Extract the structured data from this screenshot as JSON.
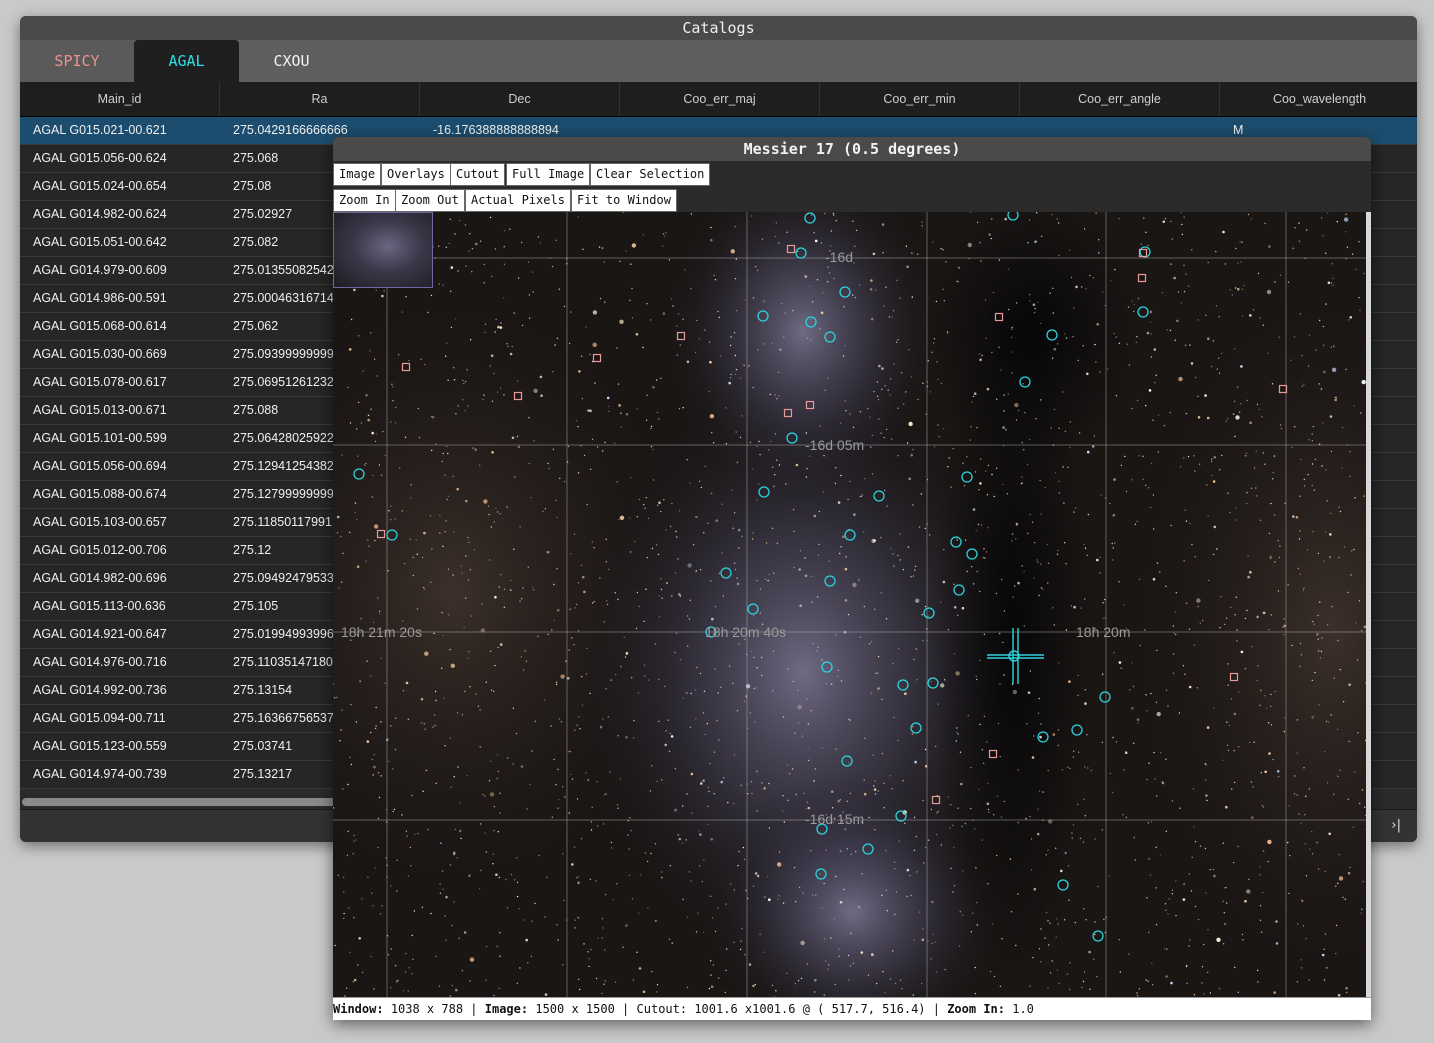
{
  "catalogs_window": {
    "title": "Catalogs",
    "tabs": [
      {
        "label": "SPICY",
        "color": "#f0908a"
      },
      {
        "label": "AGAL",
        "color": "#29e0e8",
        "active": true
      },
      {
        "label": "CXOU",
        "color": "#f4f4f4"
      }
    ],
    "columns": [
      "Main_id",
      "Ra",
      "Dec",
      "Coo_err_maj",
      "Coo_err_min",
      "Coo_err_angle",
      "Coo_wavelength"
    ],
    "rows": [
      {
        "id": "AGAL G015.021-00.621",
        "ra": "275.0429166666666",
        "dec": "-16.176388888888894",
        "wl": "M"
      },
      {
        "id": "AGAL G015.056-00.624",
        "ra": "275.068"
      },
      {
        "id": "AGAL G015.024-00.654",
        "ra": "275.08"
      },
      {
        "id": "AGAL G014.982-00.624",
        "ra": "275.02927"
      },
      {
        "id": "AGAL G015.051-00.642",
        "ra": "275.082"
      },
      {
        "id": "AGAL G014.979-00.609",
        "ra": "275.01355082542"
      },
      {
        "id": "AGAL G014.986-00.591",
        "ra": "275.00046316714"
      },
      {
        "id": "AGAL G015.068-00.614",
        "ra": "275.062"
      },
      {
        "id": "AGAL G015.030-00.669",
        "ra": "275.09399999999"
      },
      {
        "id": "AGAL G015.078-00.617",
        "ra": "275.06951261232"
      },
      {
        "id": "AGAL G015.013-00.671",
        "ra": "275.088"
      },
      {
        "id": "AGAL G015.101-00.599",
        "ra": "275.06428025922"
      },
      {
        "id": "AGAL G015.056-00.694",
        "ra": "275.12941254382"
      },
      {
        "id": "AGAL G015.088-00.674",
        "ra": "275.12799999999"
      },
      {
        "id": "AGAL G015.103-00.657",
        "ra": "275.11850117991"
      },
      {
        "id": "AGAL G015.012-00.706",
        "ra": "275.12"
      },
      {
        "id": "AGAL G014.982-00.696",
        "ra": "275.09492479533"
      },
      {
        "id": "AGAL G015.113-00.636",
        "ra": "275.105"
      },
      {
        "id": "AGAL G014.921-00.647",
        "ra": "275.01994993996"
      },
      {
        "id": "AGAL G014.976-00.716",
        "ra": "275.11035147180"
      },
      {
        "id": "AGAL G014.992-00.736",
        "ra": "275.13154"
      },
      {
        "id": "AGAL G015.094-00.711",
        "ra": "275.16366756537"
      },
      {
        "id": "AGAL G015.123-00.559",
        "ra": "275.03741"
      },
      {
        "id": "AGAL G014.974-00.739",
        "ra": "275.13217"
      }
    ],
    "last_page_icon": "›|"
  },
  "viewer_window": {
    "title": "Messier 17 (0.5 degrees)",
    "toolbar1": [
      "Image",
      "Overlays",
      "Cutout",
      "Full Image",
      "Clear Selection"
    ],
    "toolbar2": [
      "Zoom In",
      "Zoom Out",
      "Actual Pixels",
      "Fit to Window"
    ],
    "grid_labels": {
      "dec": [
        "-16d",
        "-16d 05m",
        "-16d 15m"
      ],
      "ra": [
        "18h 21m 20s",
        "18h 20m 40s",
        "18h 20m"
      ]
    },
    "status": {
      "window_label": "Window:",
      "window_value": "1038 x 788",
      "image_label": "Image:",
      "image_value": "1500 x 1500",
      "cutout_label": "Cutout:",
      "cutout_value": "1001.6 x1001.6 @ ( 517.7, 516.4)",
      "zoom_label": "Zoom In:",
      "zoom_value": "1.0"
    },
    "overlay_colors": {
      "agal": "#2ad4dc",
      "spicy": "#e89a98"
    }
  }
}
